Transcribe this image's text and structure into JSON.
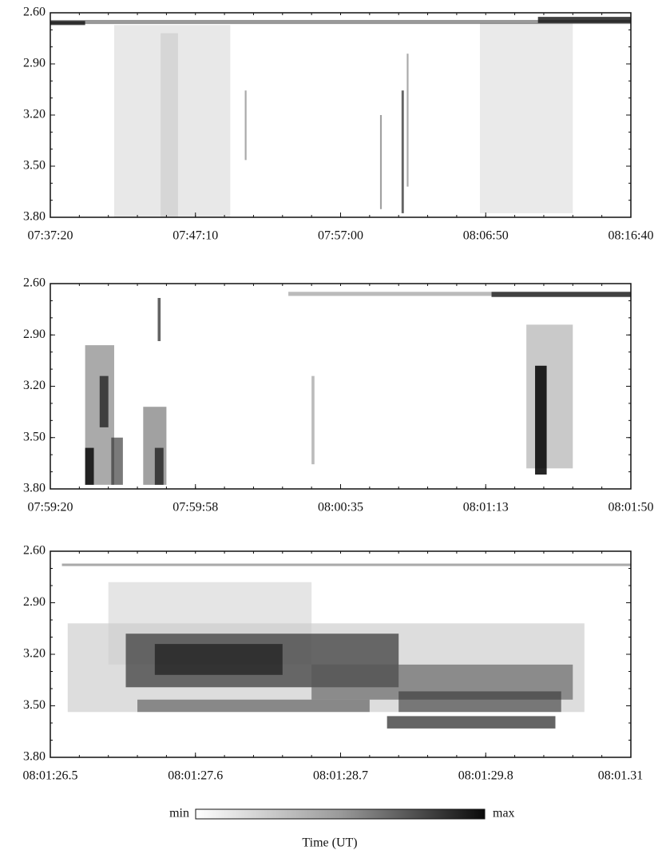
{
  "chart_data": [
    {
      "type": "heatmap",
      "ylim": [
        3.8,
        2.6
      ],
      "yticks": [
        {
          "value": 2.6,
          "label": "2.60"
        },
        {
          "value": 2.9,
          "label": "2.90"
        },
        {
          "value": 3.2,
          "label": "3.20"
        },
        {
          "value": 3.5,
          "label": "3.50"
        },
        {
          "value": 3.8,
          "label": "3.80"
        }
      ],
      "xticks": [
        "07:37:20",
        "07:47:10",
        "07:57:00",
        "08:06:50",
        "08:16:40"
      ]
    },
    {
      "type": "heatmap",
      "ylim": [
        3.8,
        2.6
      ],
      "yticks": [
        {
          "value": 2.6,
          "label": "2.60"
        },
        {
          "value": 2.9,
          "label": "2.90"
        },
        {
          "value": 3.2,
          "label": "3.20"
        },
        {
          "value": 3.5,
          "label": "3.50"
        },
        {
          "value": 3.8,
          "label": "3.80"
        }
      ],
      "xticks": [
        "07:59:20",
        "07:59:58",
        "08:00:35",
        "08:01:13",
        "08:01:50"
      ]
    },
    {
      "type": "heatmap",
      "ylim": [
        3.8,
        2.6
      ],
      "yticks": [
        {
          "value": 2.6,
          "label": "2.60"
        },
        {
          "value": 2.9,
          "label": "2.90"
        },
        {
          "value": 3.2,
          "label": "3.20"
        },
        {
          "value": 3.5,
          "label": "3.50"
        },
        {
          "value": 3.8,
          "label": "3.80"
        }
      ],
      "xticks": [
        "08:01:26.5",
        "08:01:27.6",
        "08:01:28.7",
        "08:01:29.8",
        "08:01.31"
      ]
    }
  ],
  "colorbar": {
    "min_label": "min",
    "max_label": "max"
  },
  "xlabel": "Time (UT)"
}
